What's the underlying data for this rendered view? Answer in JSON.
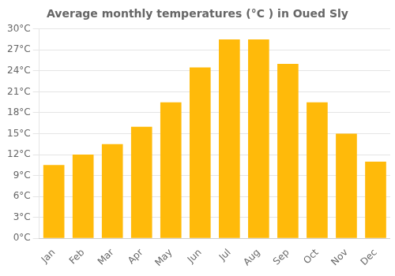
{
  "chart_data": {
    "type": "bar",
    "title": "Average monthly temperatures (°C ) in Oued Sly",
    "categories": [
      "Jan",
      "Feb",
      "Mar",
      "Apr",
      "May",
      "Jun",
      "Jul",
      "Aug",
      "Sep",
      "Oct",
      "Nov",
      "Dec"
    ],
    "values": [
      10.5,
      12.0,
      13.5,
      16.0,
      19.5,
      24.5,
      28.5,
      28.5,
      25.0,
      19.5,
      15.0,
      11.0
    ],
    "color": "#FFBA0A",
    "ylim": [
      0,
      30
    ],
    "yticks": [
      {
        "value": 0,
        "label": "0°C"
      },
      {
        "value": 3,
        "label": "3°C"
      },
      {
        "value": 6,
        "label": "6°C"
      },
      {
        "value": 9,
        "label": "9°C"
      },
      {
        "value": 12,
        "label": "12°C"
      },
      {
        "value": 15,
        "label": "15°C"
      },
      {
        "value": 18,
        "label": "18°C"
      },
      {
        "value": 21,
        "label": "21°C"
      },
      {
        "value": 24,
        "label": "24°C"
      },
      {
        "value": 27,
        "label": "27°C"
      },
      {
        "value": 30,
        "label": "30°C"
      }
    ],
    "grid": true
  }
}
